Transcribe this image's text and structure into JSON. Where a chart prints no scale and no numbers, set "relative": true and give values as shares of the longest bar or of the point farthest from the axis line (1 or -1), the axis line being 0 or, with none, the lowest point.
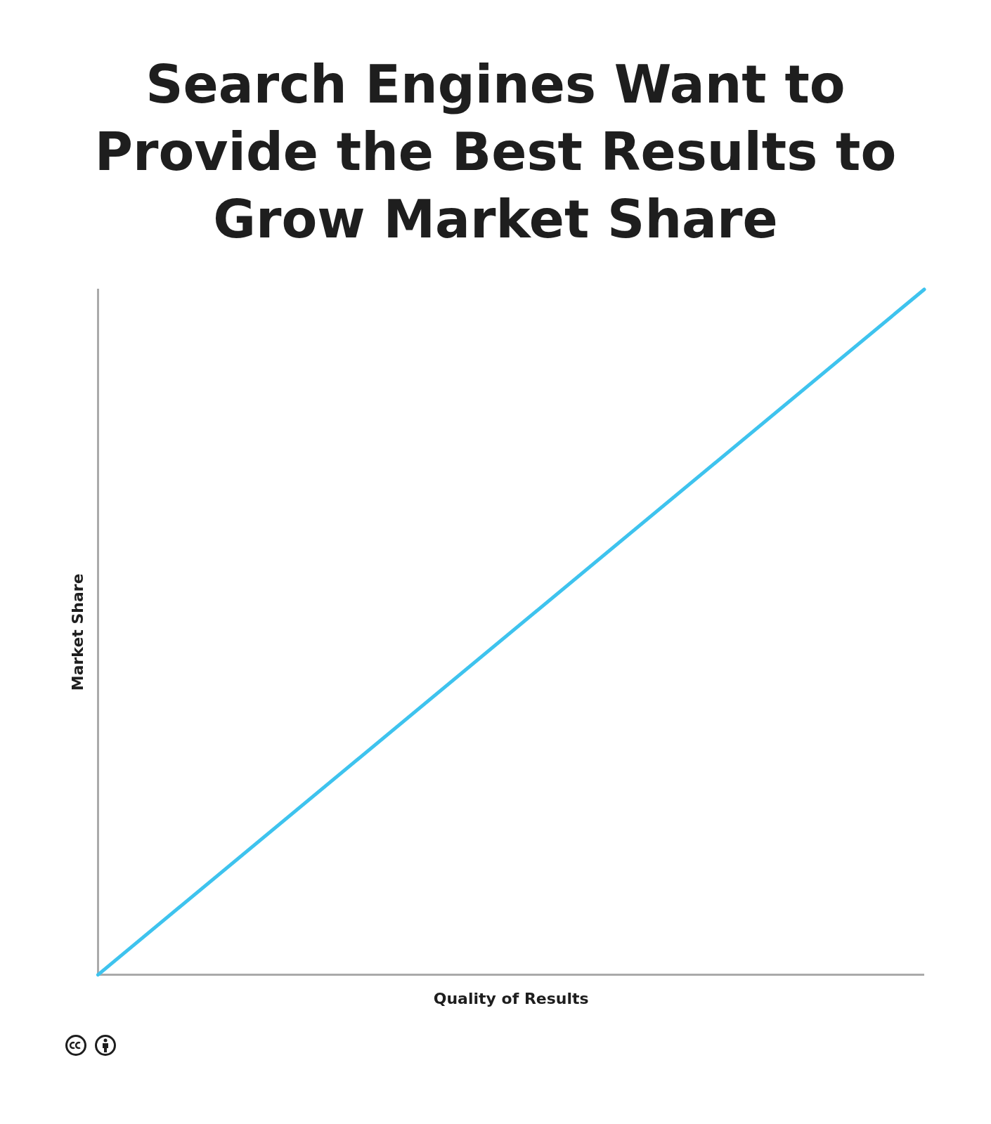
{
  "chart_data": {
    "type": "line",
    "title": "Search Engines Want to Provide the Best Results to Grow Market Share",
    "xlabel": "Quality of Results",
    "ylabel": "Market Share",
    "categories": [
      null,
      null
    ],
    "values": [
      0,
      1
    ],
    "color": "#3ec3ee",
    "relative": true,
    "marker": "none",
    "ref_lines": [
      {
        "axis": "y",
        "value": 0,
        "color": "#aaaaaa"
      }
    ]
  }
}
